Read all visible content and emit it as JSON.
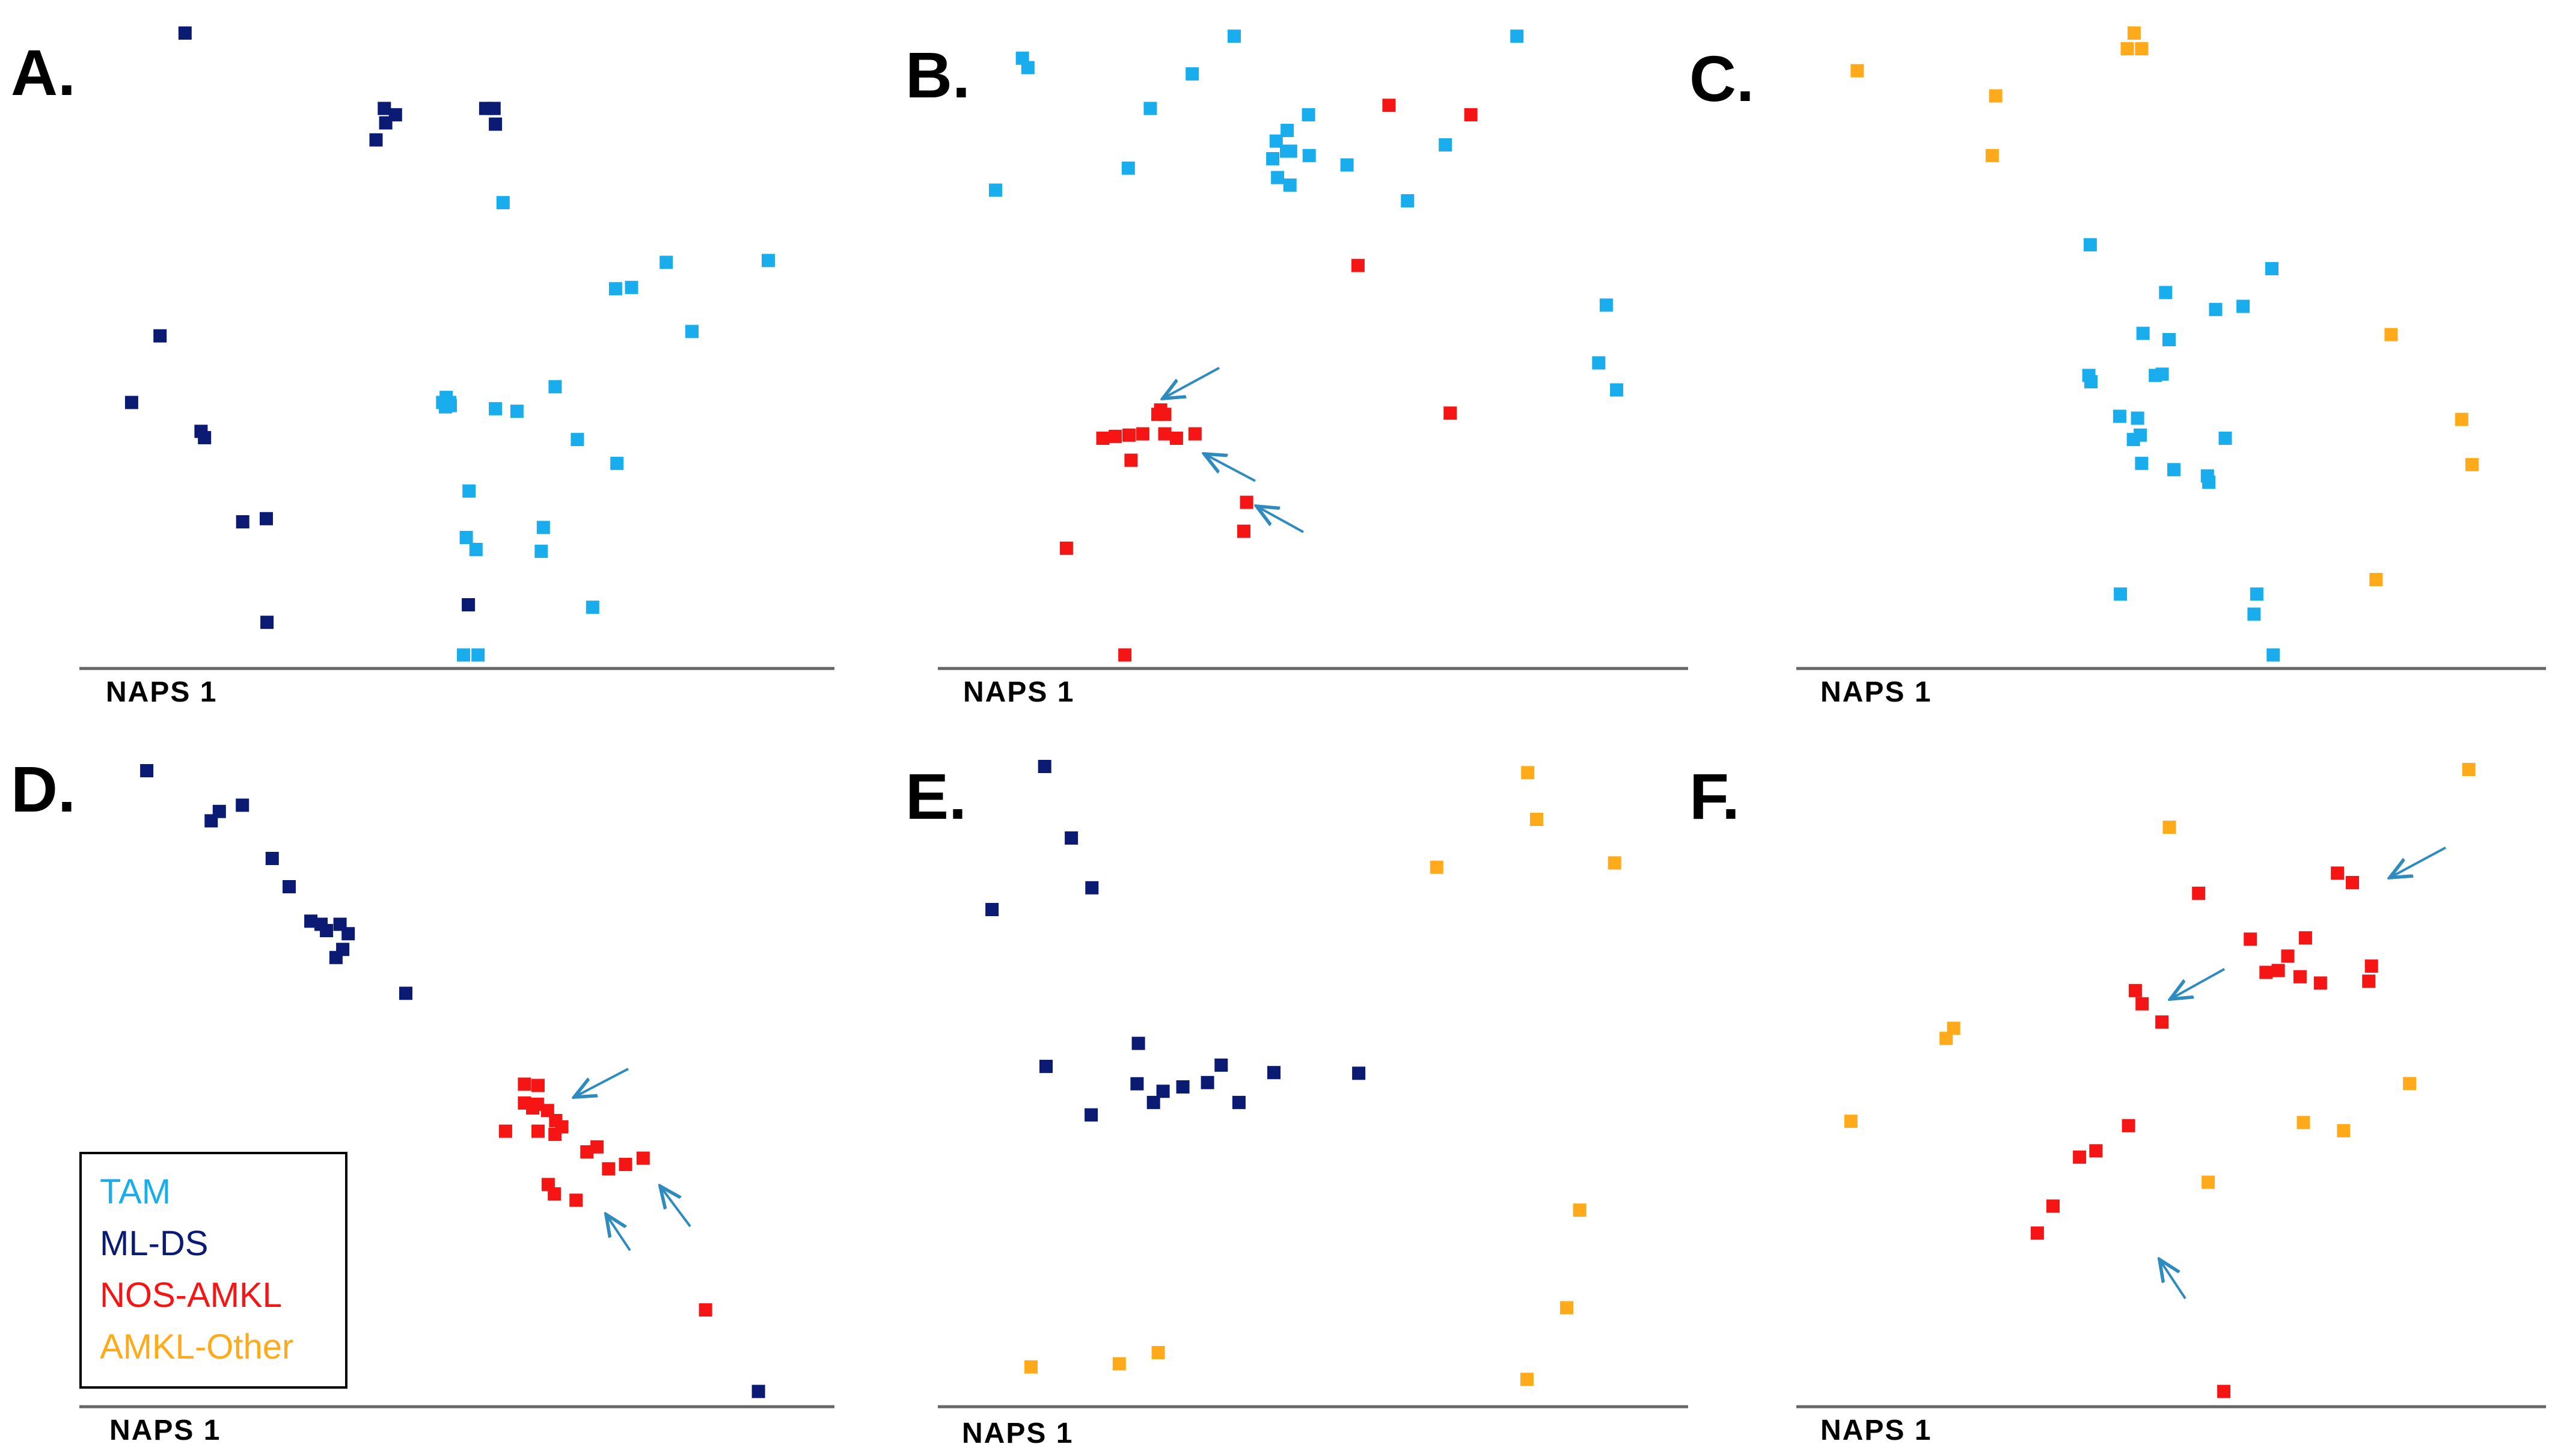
{
  "figure": {
    "legend": [
      {
        "label": "TAM",
        "color": "#1AADEE"
      },
      {
        "label": "ML-DS",
        "color": "#0B1A72"
      },
      {
        "label": "NOS-AMKL",
        "color": "#F51515"
      },
      {
        "label": "AMKL-Other",
        "color": "#FFAA1A"
      }
    ]
  },
  "chart_data": [
    {
      "type": "scatter",
      "panel": "A.",
      "xlabel": "NAPS 1",
      "ylabel": "",
      "xlim": [
        0,
        1000
      ],
      "ylim": [
        0,
        1000
      ],
      "series": [
        {
          "name": "ML-DS",
          "points": [
            [
              115,
              1000
            ],
            [
              402,
              880
            ],
            [
              404,
              857
            ],
            [
              418,
              870
            ],
            [
              390,
              830
            ],
            [
              548,
              880
            ],
            [
              560,
              880
            ],
            [
              562,
              855
            ],
            [
              79,
              518
            ],
            [
              38,
              412
            ],
            [
              138,
              366
            ],
            [
              143,
              356
            ],
            [
              198,
              222
            ],
            [
              232,
              227
            ],
            [
              233,
              62
            ],
            [
              523,
              90
            ]
          ]
        },
        {
          "name": "TAM",
          "points": [
            [
              573,
              730
            ],
            [
              808,
              635
            ],
            [
              758,
              595
            ],
            [
              735,
              593
            ],
            [
              955,
              638
            ],
            [
              845,
              525
            ],
            [
              491,
              420
            ],
            [
              497,
              407
            ],
            [
              496,
              412
            ],
            [
              486,
              412
            ],
            [
              490,
              405
            ],
            [
              562,
              402
            ],
            [
              593,
              398
            ],
            [
              648,
              437
            ],
            [
              680,
              353
            ],
            [
              737,
              315
            ],
            [
              524,
              271
            ],
            [
              520,
              197
            ],
            [
              534,
              178
            ],
            [
              631,
              213
            ],
            [
              628,
              175
            ],
            [
              702,
              86
            ],
            [
              516,
              10
            ],
            [
              537,
              10
            ]
          ]
        }
      ]
    },
    {
      "type": "scatter",
      "panel": "B.",
      "xlabel": "NAPS 1",
      "ylabel": "",
      "xlim": [
        0,
        1000
      ],
      "ylim": [
        0,
        1000
      ],
      "series": [
        {
          "name": "TAM",
          "points": [
            [
              81,
              960
            ],
            [
              89,
              945
            ],
            [
              389,
              995
            ],
            [
              800,
              995
            ],
            [
              267,
              880
            ],
            [
              328,
              935
            ],
            [
              497,
              870
            ],
            [
              445,
              800
            ],
            [
              471,
              812
            ],
            [
              498,
              805
            ],
            [
              553,
              790
            ],
            [
              235,
              785
            ],
            [
              42,
              750
            ],
            [
              466,
              845
            ],
            [
              450,
              828
            ],
            [
              465,
              812
            ],
            [
              452,
              770
            ],
            [
              470,
              758
            ],
            [
              641,
              733
            ],
            [
              696,
              822
            ],
            [
              930,
              567
            ],
            [
              919,
              475
            ],
            [
              945,
              432
            ]
          ]
        },
        {
          "name": "NOS-AMKL",
          "points": [
            [
              614,
              885
            ],
            [
              733,
              870
            ],
            [
              569,
              630
            ],
            [
              278,
              393
            ],
            [
              288,
              393
            ],
            [
              282,
              400
            ],
            [
              198,
              355
            ],
            [
              216,
              358
            ],
            [
              236,
              360
            ],
            [
              256,
              362
            ],
            [
              288,
              362
            ],
            [
              305,
              355
            ],
            [
              332,
              362
            ],
            [
              239,
              320
            ],
            [
              407,
              253
            ],
            [
              403,
              207
            ],
            [
              145,
              180
            ],
            [
              230,
              10
            ],
            [
              703,
              395
            ]
          ]
        }
      ],
      "annotations": [
        "arrow",
        "arrow",
        "arrow"
      ]
    },
    {
      "type": "scatter",
      "panel": "C.",
      "xlabel": "NAPS 1",
      "ylabel": "",
      "xlim": [
        0,
        1000
      ],
      "ylim": [
        0,
        1000
      ],
      "series": [
        {
          "name": "AMKL-Other",
          "points": [
            [
              45,
              940
            ],
            [
              449,
              1000
            ],
            [
              439,
              975
            ],
            [
              460,
              975
            ],
            [
              247,
              900
            ],
            [
              242,
              805
            ],
            [
              824,
              520
            ],
            [
              927,
              385
            ],
            [
              942,
              313
            ],
            [
              802,
              130
            ]
          ]
        },
        {
          "name": "TAM",
          "points": [
            [
              385,
              663
            ],
            [
              650,
              625
            ],
            [
              495,
              587
            ],
            [
              568,
              560
            ],
            [
              608,
              565
            ],
            [
              462,
              522
            ],
            [
              500,
              512
            ],
            [
              480,
              455
            ],
            [
              490,
              457
            ],
            [
              386,
              445
            ],
            [
              383,
              455
            ],
            [
              428,
              390
            ],
            [
              454,
              387
            ],
            [
              458,
              360
            ],
            [
              448,
              353
            ],
            [
              582,
              355
            ],
            [
              460,
              315
            ],
            [
              507,
              305
            ],
            [
              556,
              295
            ],
            [
              558,
              285
            ],
            [
              429,
              107
            ],
            [
              628,
              107
            ],
            [
              624,
              75
            ],
            [
              652,
              10
            ]
          ]
        }
      ]
    },
    {
      "type": "scatter",
      "panel": "D.",
      "xlabel": "NAPS 1",
      "ylabel": "",
      "xlim": [
        0,
        1000
      ],
      "ylim": [
        0,
        1000
      ],
      "series": [
        {
          "name": "ML-DS",
          "points": [
            [
              48,
              1000
            ],
            [
              143,
              920
            ],
            [
              155,
              935
            ],
            [
              189,
              945
            ],
            [
              233,
              860
            ],
            [
              258,
              815
            ],
            [
              290,
              760
            ],
            [
              305,
              755
            ],
            [
              313,
              745
            ],
            [
              333,
              755
            ],
            [
              345,
              740
            ],
            [
              337,
              715
            ],
            [
              327,
              702
            ],
            [
              430,
              645
            ],
            [
              950,
              10
            ]
          ]
        },
        {
          "name": "NOS-AMKL",
          "points": [
            [
              605,
              500
            ],
            [
              625,
              498
            ],
            [
              605,
              470
            ],
            [
              624,
              468
            ],
            [
              617,
              462
            ],
            [
              639,
              458
            ],
            [
              651,
              442
            ],
            [
              660,
              432
            ],
            [
              577,
              425
            ],
            [
              625,
              425
            ],
            [
              650,
              420
            ],
            [
              697,
              392
            ],
            [
              712,
              400
            ],
            [
              729,
              365
            ],
            [
              754,
              372
            ],
            [
              780,
              382
            ],
            [
              640,
              340
            ],
            [
              649,
              325
            ],
            [
              681,
              315
            ],
            [
              872,
              140
            ]
          ]
        }
      ],
      "annotations": [
        "arrow",
        "arrow",
        "arrow"
      ]
    },
    {
      "type": "scatter",
      "panel": "E.",
      "xlabel": "NAPS 1",
      "ylabel": "",
      "xlim": [
        0,
        1000
      ],
      "ylim": [
        0,
        1000
      ],
      "series": [
        {
          "name": "ML-DS",
          "points": [
            [
              114,
              1000
            ],
            [
              153,
              885
            ],
            [
              183,
              805
            ],
            [
              37,
              770
            ],
            [
              116,
              518
            ],
            [
              182,
              440
            ],
            [
              251,
              555
            ],
            [
              249,
              490
            ],
            [
              273,
              460
            ],
            [
              287,
              478
            ],
            [
              316,
              485
            ],
            [
              352,
              492
            ],
            [
              372,
              520
            ],
            [
              398,
              460
            ],
            [
              449,
              508
            ],
            [
              573,
              507
            ]
          ]
        },
        {
          "name": "AMKL-Other",
          "points": [
            [
              820,
              990
            ],
            [
              833,
              915
            ],
            [
              687,
              838
            ],
            [
              947,
              845
            ],
            [
              896,
              287
            ],
            [
              877,
              130
            ],
            [
              819,
              15
            ],
            [
              94,
              35
            ],
            [
              223,
              40
            ],
            [
              280,
              58
            ]
          ]
        }
      ]
    },
    {
      "type": "scatter",
      "panel": "F.",
      "xlabel": "NAPS 1",
      "ylabel": "",
      "xlim": [
        0,
        1000
      ],
      "ylim": [
        0,
        1000
      ],
      "series": [
        {
          "name": "AMKL-Other",
          "points": [
            [
              944,
              1000
            ],
            [
              504,
              908
            ],
            [
              187,
              588
            ],
            [
              176,
              572
            ],
            [
              36,
              440
            ],
            [
              701,
              438
            ],
            [
              760,
              425
            ],
            [
              857,
              500
            ],
            [
              561,
              343
            ]
          ]
        },
        {
          "name": "NOS-AMKL",
          "points": [
            [
              751,
              835
            ],
            [
              773,
              820
            ],
            [
              547,
              803
            ],
            [
              623,
              730
            ],
            [
              704,
              732
            ],
            [
              678,
              703
            ],
            [
              664,
              680
            ],
            [
              646,
              677
            ],
            [
              696,
              670
            ],
            [
              726,
              660
            ],
            [
              801,
              687
            ],
            [
              797,
              663
            ],
            [
              454,
              648
            ],
            [
              464,
              627
            ],
            [
              493,
              598
            ],
            [
              444,
              433
            ],
            [
              396,
              393
            ],
            [
              372,
              383
            ],
            [
              333,
              305
            ],
            [
              310,
              262
            ],
            [
              584,
              10
            ]
          ]
        }
      ],
      "annotations": [
        "arrow",
        "arrow",
        "arrow"
      ]
    }
  ]
}
